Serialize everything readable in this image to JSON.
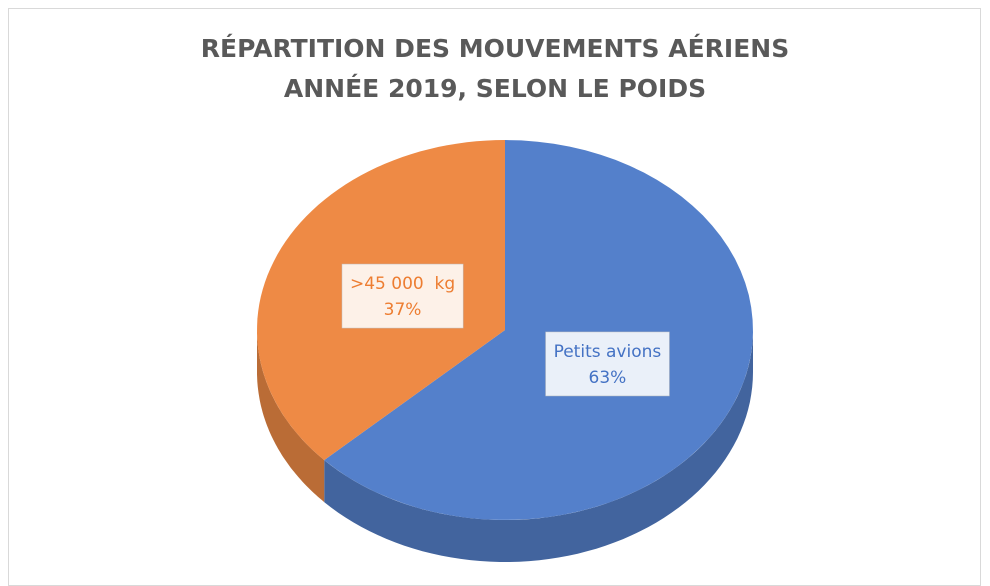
{
  "chart_data": {
    "type": "pie",
    "title": "RÉPARTITION DES MOUVEMENTS AÉRIENS",
    "subtitle": "ANNÉE 2019, SELON LE POIDS",
    "categories": [
      "Petits avions",
      ">45 000  kg"
    ],
    "values": [
      63,
      37
    ],
    "value_labels": [
      "63%",
      "37%"
    ],
    "colors": [
      "#5480cb",
      "#ee8a45"
    ]
  }
}
